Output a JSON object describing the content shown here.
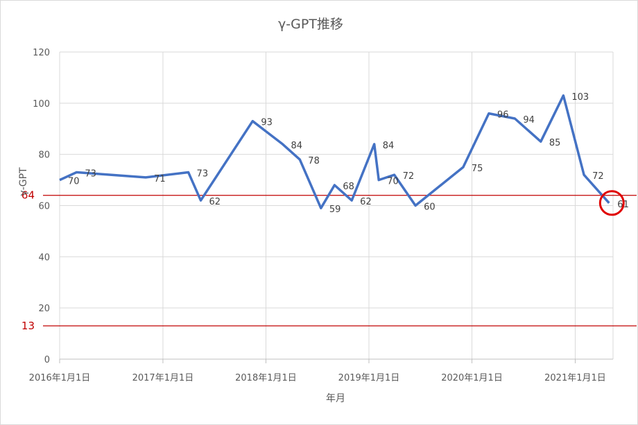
{
  "chart_data": {
    "type": "line",
    "title": "γ-GPT推移",
    "xlabel": "年月",
    "ylabel": "γ-GPT",
    "xlim": [
      "2016-01-01",
      "2021-05-15"
    ],
    "ylim": [
      0,
      120
    ],
    "y_ticks": [
      0,
      20,
      40,
      60,
      80,
      100,
      120
    ],
    "x_ticks": [
      {
        "date": "2016-01-01",
        "label": "2016年1月1日"
      },
      {
        "date": "2017-01-01",
        "label": "2017年1月1日"
      },
      {
        "date": "2018-01-01",
        "label": "2018年1月1日"
      },
      {
        "date": "2019-01-01",
        "label": "2019年1月1日"
      },
      {
        "date": "2020-01-01",
        "label": "2020年1月1日"
      },
      {
        "date": "2021-01-01",
        "label": "2021年1月1日"
      }
    ],
    "grid": true,
    "series": [
      {
        "color": "#4472c4",
        "points": [
          {
            "x": "2016-01-01",
            "y": 70
          },
          {
            "x": "2016-03-01",
            "y": 73
          },
          {
            "x": "2016-11-01",
            "y": 71
          },
          {
            "x": "2017-04-01",
            "y": 73
          },
          {
            "x": "2017-05-15",
            "y": 62
          },
          {
            "x": "2017-11-15",
            "y": 93
          },
          {
            "x": "2018-03-01",
            "y": 84
          },
          {
            "x": "2018-05-01",
            "y": 78
          },
          {
            "x": "2018-07-15",
            "y": 59
          },
          {
            "x": "2018-09-01",
            "y": 68
          },
          {
            "x": "2018-11-01",
            "y": 62
          },
          {
            "x": "2019-01-20",
            "y": 84
          },
          {
            "x": "2019-02-05",
            "y": 70
          },
          {
            "x": "2019-04-01",
            "y": 72
          },
          {
            "x": "2019-06-15",
            "y": 60
          },
          {
            "x": "2019-12-01",
            "y": 75
          },
          {
            "x": "2020-03-01",
            "y": 96
          },
          {
            "x": "2020-06-01",
            "y": 94
          },
          {
            "x": "2020-09-01",
            "y": 85
          },
          {
            "x": "2020-11-20",
            "y": 103
          },
          {
            "x": "2021-02-01",
            "y": 72
          },
          {
            "x": "2021-05-01",
            "y": 61
          }
        ]
      }
    ],
    "reference_lines": [
      {
        "value": 64,
        "label": "64",
        "color": "#c00000"
      },
      {
        "value": 13,
        "label": "13",
        "color": "#c00000"
      }
    ],
    "highlight": {
      "x": "2021-05-01",
      "y": 61,
      "color": "#e00000"
    }
  }
}
